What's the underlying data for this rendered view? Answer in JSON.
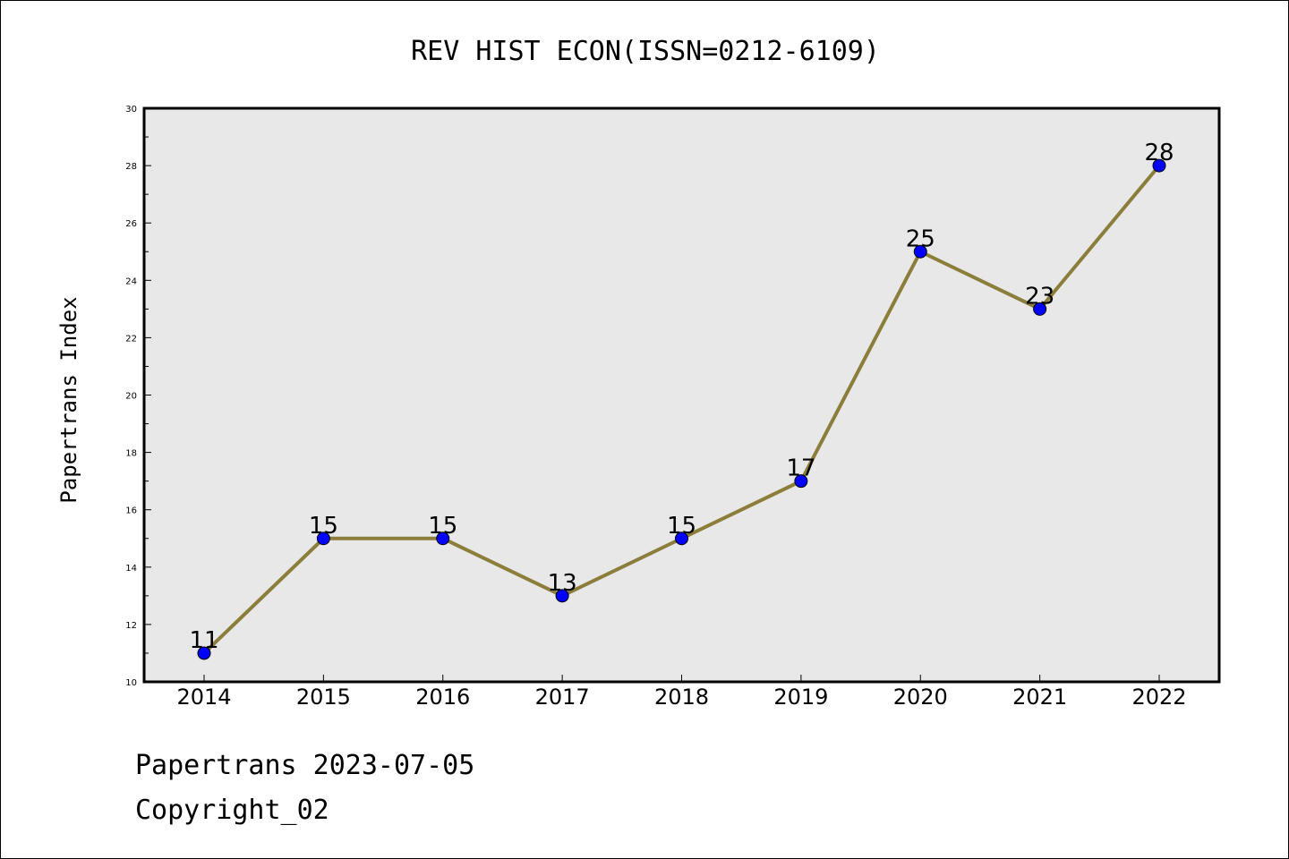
{
  "chart_data": {
    "type": "line",
    "title": "REV HIST ECON(ISSN=0212-6109)",
    "xlabel": "",
    "ylabel": "Papertrans Index",
    "categories": [
      "2014",
      "2015",
      "2016",
      "2017",
      "2018",
      "2019",
      "2020",
      "2021",
      "2022"
    ],
    "series": [
      {
        "values": [
          11,
          15,
          15,
          13,
          15,
          17,
          25,
          23,
          28
        ]
      }
    ],
    "ylim": [
      10,
      30
    ],
    "yticks": [
      10,
      12,
      14,
      16,
      18,
      20,
      22,
      24,
      26,
      28,
      30
    ],
    "grid": false,
    "legend": "none",
    "colors": {
      "line": "#8b7d3a",
      "marker": "#0000ff",
      "plot_background": "#e8e8e8"
    }
  },
  "footer": {
    "line1": "Papertrans 2023-07-05",
    "line2": "Copyright_02"
  }
}
